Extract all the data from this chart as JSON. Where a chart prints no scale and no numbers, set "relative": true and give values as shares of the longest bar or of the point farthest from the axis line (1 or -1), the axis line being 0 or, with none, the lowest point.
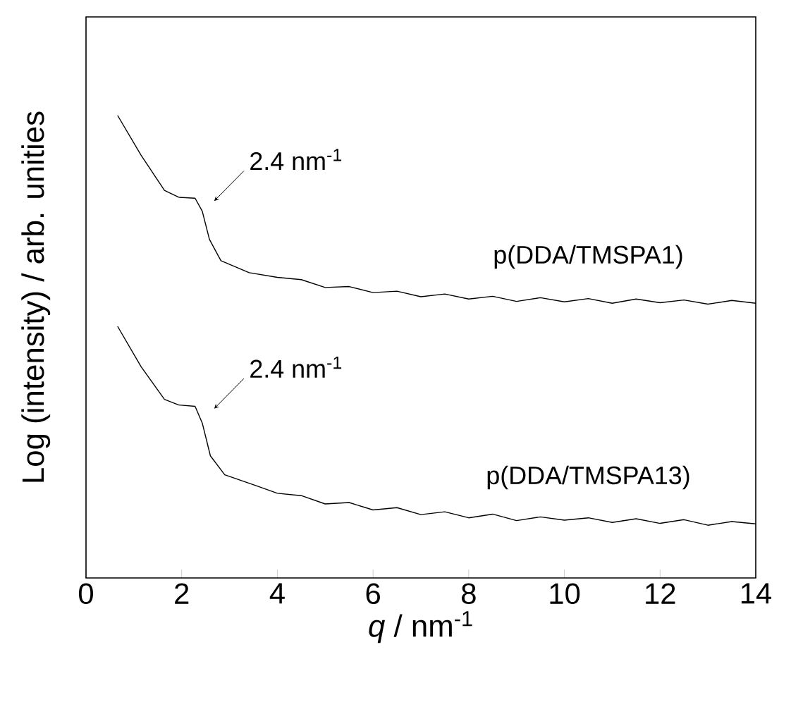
{
  "chart_data": {
    "type": "line",
    "relative": true,
    "xlabel": "*q* / nm$^{-1}$",
    "ylabel": "Log (intensity) / arb. unities",
    "xlim": [
      0,
      14
    ],
    "xticks": [
      0,
      2,
      4,
      6,
      8,
      10,
      12,
      14
    ],
    "grid": false,
    "series": [
      {
        "name": "p(DDA/TMSPA1)",
        "color": "#000000",
        "x": [
          0.66,
          1.15,
          1.64,
          1.94,
          2.28,
          2.43,
          2.58,
          2.82,
          3.41,
          4.0,
          4.5,
          5.0,
          5.5,
          6.0,
          6.5,
          7.0,
          7.5,
          8.0,
          8.5,
          9.0,
          9.5,
          10.0,
          10.5,
          11.0,
          11.5,
          12.0,
          12.5,
          13.0,
          13.5,
          14.0
        ],
        "values": [
          1.0,
          0.914,
          0.838,
          0.823,
          0.821,
          0.793,
          0.732,
          0.686,
          0.66,
          0.65,
          0.645,
          0.628,
          0.63,
          0.617,
          0.62,
          0.608,
          0.614,
          0.603,
          0.609,
          0.598,
          0.606,
          0.597,
          0.604,
          0.594,
          0.603,
          0.595,
          0.601,
          0.592,
          0.6,
          0.594
        ]
      },
      {
        "name": "p(DDA/TMSPA13)",
        "color": "#000000",
        "x": [
          0.66,
          1.15,
          1.64,
          1.94,
          2.28,
          2.43,
          2.6,
          2.9,
          3.6,
          4.0,
          4.5,
          5.0,
          5.5,
          6.0,
          6.5,
          7.0,
          7.5,
          8.0,
          8.5,
          9.0,
          9.5,
          10.0,
          10.5,
          11.0,
          11.5,
          12.0,
          12.5,
          13.0,
          13.5,
          14.0
        ],
        "values": [
          0.544,
          0.457,
          0.386,
          0.374,
          0.371,
          0.335,
          0.264,
          0.223,
          0.198,
          0.183,
          0.178,
          0.16,
          0.163,
          0.147,
          0.152,
          0.137,
          0.143,
          0.13,
          0.138,
          0.124,
          0.132,
          0.125,
          0.13,
          0.12,
          0.128,
          0.118,
          0.126,
          0.114,
          0.122,
          0.117
        ]
      }
    ],
    "annotations": [
      {
        "text": "2.4 nm$^{-1}$",
        "x": 2.4,
        "y": 0.82
      },
      {
        "text": "2.4 nm$^{-1}$",
        "x": 2.4,
        "y": 0.371
      }
    ]
  }
}
